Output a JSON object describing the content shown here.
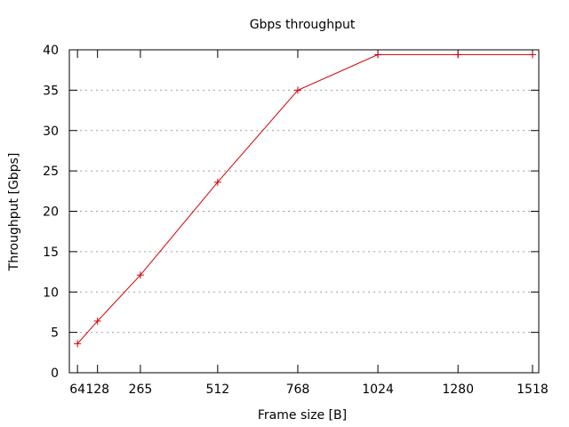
{
  "chart_data": {
    "type": "line",
    "title": "Gbps throughput",
    "xlabel": "Frame size [B]",
    "ylabel": "Throughput [Gbps]",
    "x_scale": "linear",
    "xlim": [
      38,
      1538
    ],
    "ylim": [
      0,
      40
    ],
    "grid": "horizontal dashed",
    "x_ticks": [
      64,
      128,
      265,
      512,
      768,
      1024,
      1280,
      1518
    ],
    "y_ticks": [
      0,
      5,
      10,
      15,
      20,
      25,
      30,
      35,
      40
    ],
    "series": [
      {
        "color": "#d40000",
        "marker": "plus",
        "x": [
          64,
          128,
          265,
          512,
          768,
          1024,
          1280,
          1518
        ],
        "y": [
          3.6,
          6.4,
          12.1,
          23.6,
          35.0,
          39.4,
          39.4,
          39.4
        ]
      }
    ]
  }
}
